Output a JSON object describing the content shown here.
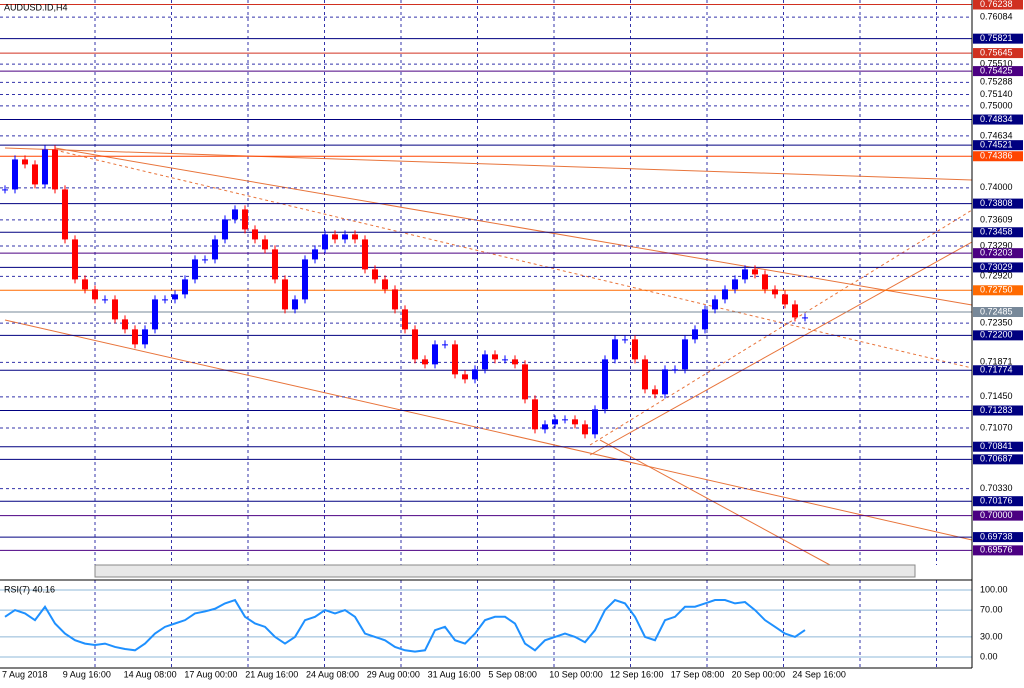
{
  "chart_data": [
    {
      "type": "candlestick",
      "title": "AUDUSD.ID,H4",
      "values": [
        0.73981,
        0.74347,
        0.74286,
        0.74042,
        0.74469,
        0.73981,
        0.73371,
        0.72883,
        0.72761,
        0.72639,
        0.72639,
        0.72395,
        0.72273,
        0.7209,
        0.72273,
        0.72639,
        0.72639,
        0.727,
        0.72883,
        0.73127,
        0.73127,
        0.73371,
        0.73615,
        0.73737,
        0.73493,
        0.73371,
        0.73249,
        0.72883,
        0.72517,
        0.72639,
        0.73127,
        0.73249,
        0.73432,
        0.73371,
        0.73432,
        0.73371,
        0.73005,
        0.72883,
        0.72761,
        0.72517,
        0.72273,
        0.71907,
        0.71846,
        0.7209,
        0.7209,
        0.71724,
        0.71663,
        0.71785,
        0.71968,
        0.71907,
        0.71907,
        0.71846,
        0.71419,
        0.71053,
        0.71114,
        0.71175,
        0.71175,
        0.71114,
        0.70992,
        0.71297,
        0.71907,
        0.72151,
        0.72151,
        0.71907,
        0.71541,
        0.7148,
        0.71785,
        0.71785,
        0.72151,
        0.72273,
        0.72517,
        0.72639,
        0.72761,
        0.72883,
        0.73005,
        0.72944,
        0.72761,
        0.727,
        0.72578,
        0.72419,
        0.72419
      ],
      "up_color": "#0000ff",
      "down_color": "#ff0000",
      "ylim": [
        0.6955,
        0.7625
      ],
      "yticks": [
        {
          "value": 0.76238,
          "label": "0.76238",
          "color": "#d03020"
        },
        {
          "value": 0.76084,
          "label": "0.76084"
        },
        {
          "value": 0.75821,
          "label": "0.75821",
          "color": "#000080"
        },
        {
          "value": 0.75645,
          "label": "0.75645",
          "color": "#d03020"
        },
        {
          "value": 0.7551,
          "label": "0.75510"
        },
        {
          "value": 0.75425,
          "label": "0.75425",
          "color": "#4b0082"
        },
        {
          "value": 0.75288,
          "label": "0.75288"
        },
        {
          "value": 0.7514,
          "label": "0.75140"
        },
        {
          "value": 0.75,
          "label": "0.75000"
        },
        {
          "value": 0.74834,
          "label": "0.74834",
          "color": "#000080"
        },
        {
          "value": 0.74634,
          "label": "0.74634"
        },
        {
          "value": 0.74521,
          "label": "0.74521",
          "color": "#000080"
        },
        {
          "value": 0.74386,
          "label": "0.74386",
          "color": "#ff4500"
        },
        {
          "value": 0.74,
          "label": "0.74000"
        },
        {
          "value": 0.73808,
          "label": "0.73808",
          "color": "#000080"
        },
        {
          "value": 0.73609,
          "label": "0.73609"
        },
        {
          "value": 0.73458,
          "label": "0.73458",
          "color": "#000080"
        },
        {
          "value": 0.7329,
          "label": "0.73290"
        },
        {
          "value": 0.73203,
          "label": "0.73203",
          "color": "#4b0082"
        },
        {
          "value": 0.73029,
          "label": "0.73029",
          "color": "#000080"
        },
        {
          "value": 0.7292,
          "label": "0.72920"
        },
        {
          "value": 0.7275,
          "label": "0.72750",
          "color": "#ff6a00"
        },
        {
          "value": 0.72485,
          "label": "0.72485",
          "color": "#778899"
        },
        {
          "value": 0.7235,
          "label": "0.72350"
        },
        {
          "value": 0.722,
          "label": "0.72200",
          "color": "#000080"
        },
        {
          "value": 0.71871,
          "label": "0.71871"
        },
        {
          "value": 0.71774,
          "label": "0.71774",
          "color": "#000080"
        },
        {
          "value": 0.7145,
          "label": "0.71450"
        },
        {
          "value": 0.71283,
          "label": "0.71283",
          "color": "#000080"
        },
        {
          "value": 0.7107,
          "label": "0.71070"
        },
        {
          "value": 0.70841,
          "label": "0.70841",
          "color": "#000080"
        },
        {
          "value": 0.70687,
          "label": "0.70687",
          "color": "#000080"
        },
        {
          "value": 0.7033,
          "label": "0.70330"
        },
        {
          "value": 0.70176,
          "label": "0.70176",
          "color": "#000080"
        },
        {
          "value": 0.7,
          "label": "0.70000",
          "color": "#4b0082"
        },
        {
          "value": 0.69738,
          "label": "0.69738",
          "color": "#000080"
        },
        {
          "value": 0.69576,
          "label": "0.69576",
          "color": "#4b0082"
        }
      ],
      "x_labels": [
        "7 Aug 2018",
        "9 Aug 16:00",
        "14 Aug 08:00",
        "17 Aug 00:00",
        "21 Aug 16:00",
        "24 Aug 08:00",
        "29 Aug 00:00",
        "31 Aug 16:00",
        "5 Sep 08:00",
        "10 Sep 00:00",
        "12 Sep 16:00",
        "17 Sep 08:00",
        "20 Sep 00:00",
        "24 Sep 16:00"
      ]
    },
    {
      "type": "line",
      "title": "RSI(7) 40.16",
      "color": "#1e90ff",
      "values": [
        60,
        70,
        65,
        55,
        75,
        50,
        35,
        25,
        20,
        18,
        20,
        15,
        12,
        10,
        20,
        35,
        45,
        50,
        55,
        65,
        68,
        72,
        80,
        85,
        60,
        50,
        45,
        30,
        20,
        30,
        55,
        60,
        70,
        65,
        70,
        60,
        35,
        30,
        25,
        15,
        10,
        8,
        10,
        40,
        45,
        25,
        20,
        35,
        55,
        60,
        60,
        50,
        20,
        10,
        25,
        30,
        35,
        30,
        22,
        40,
        70,
        85,
        80,
        60,
        30,
        25,
        55,
        60,
        75,
        75,
        80,
        85,
        85,
        80,
        82,
        70,
        55,
        45,
        35,
        30,
        40.16
      ],
      "ylim": [
        0,
        100
      ],
      "yticks": [
        {
          "value": 100,
          "label": "100.00"
        },
        {
          "value": 70,
          "label": "70.00"
        },
        {
          "value": 30,
          "label": "30.00"
        },
        {
          "value": 0,
          "label": "0.00"
        }
      ]
    }
  ]
}
